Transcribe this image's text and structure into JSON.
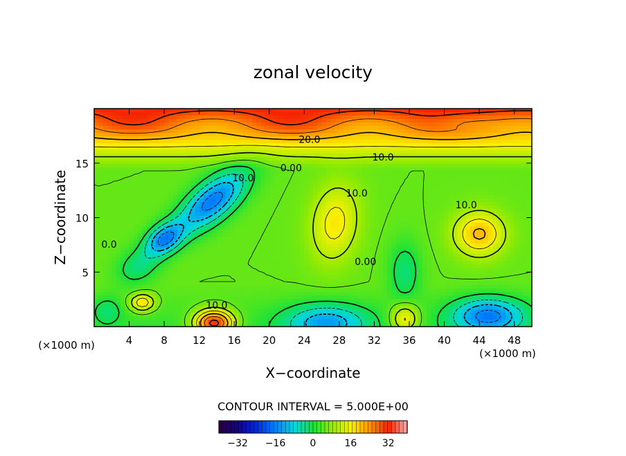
{
  "chart_data": {
    "type": "heatmap",
    "title": "zonal velocity",
    "xlabel": "X−coordinate",
    "ylabel": "Z−coordinate",
    "x_unit": "(×1000 m)",
    "z_unit": "(×1000 m)",
    "xlim": [
      0,
      50
    ],
    "ylim": [
      0,
      20
    ],
    "x_ticks": [
      {
        "value": 4,
        "label": "4"
      },
      {
        "value": 8,
        "label": "8"
      },
      {
        "value": 12,
        "label": "12"
      },
      {
        "value": 16,
        "label": "16"
      },
      {
        "value": 20,
        "label": "20"
      },
      {
        "value": 24,
        "label": "24"
      },
      {
        "value": 28,
        "label": "28"
      },
      {
        "value": 32,
        "label": "32"
      },
      {
        "value": 36,
        "label": "36"
      },
      {
        "value": 40,
        "label": "40"
      },
      {
        "value": 44,
        "label": "44"
      },
      {
        "value": 48,
        "label": "48"
      }
    ],
    "y_ticks": [
      {
        "value": 5,
        "label": "5"
      },
      {
        "value": 10,
        "label": "10"
      },
      {
        "value": 15,
        "label": "15"
      }
    ],
    "contour_interval_text": "CONTOUR INTERVAL = 5.000E+00",
    "contour_labels": [
      {
        "text": "20.0",
        "x": 24.6,
        "z": 17.1
      },
      {
        "text": "10.0",
        "x": 33.0,
        "z": 15.5
      },
      {
        "text": "10.0",
        "x": 17.0,
        "z": 13.6
      },
      {
        "text": "0.00",
        "x": 22.5,
        "z": 14.5
      },
      {
        "text": "10.0",
        "x": 30.0,
        "z": 12.2
      },
      {
        "text": "10.0",
        "x": 42.5,
        "z": 11.1
      },
      {
        "text": "0.00",
        "x": 31.0,
        "z": 5.9
      },
      {
        "text": "10.0",
        "x": 14.0,
        "z": 1.9
      },
      {
        "text": "0.0",
        "x": 1.7,
        "z": 7.5
      }
    ],
    "features": [
      {
        "x": 13.5,
        "z": 11.5,
        "value": -22,
        "sx": 4.5,
        "sz": 1.8,
        "tilt": 0.55
      },
      {
        "x": 8.0,
        "z": 8.0,
        "value": -20,
        "sx": 2.2,
        "sz": 1.3,
        "tilt": 0.4
      },
      {
        "x": 5.0,
        "z": 5.5,
        "value": -8,
        "sx": 2.5,
        "sz": 1.6,
        "tilt": 0.3
      },
      {
        "x": 27.5,
        "z": 9.5,
        "value": 12,
        "sx": 2.6,
        "sz": 3.5,
        "tilt": -0.25
      },
      {
        "x": 35.5,
        "z": 5.0,
        "value": -8,
        "sx": 1.8,
        "sz": 2.8,
        "tilt": 0.0
      },
      {
        "x": 44.0,
        "z": 8.5,
        "value": 16,
        "sx": 2.8,
        "sz": 2.0,
        "tilt": 0.0
      },
      {
        "x": 13.7,
        "z": 0.3,
        "value": 30,
        "sx": 2.2,
        "sz": 1.2,
        "tilt": 0.0
      },
      {
        "x": 26.5,
        "z": 0.4,
        "value": -16,
        "sx": 4.5,
        "sz": 1.6,
        "tilt": 0.0
      },
      {
        "x": 45.0,
        "z": 1.0,
        "value": -20,
        "sx": 4.0,
        "sz": 1.6,
        "tilt": 0.0
      },
      {
        "x": 35.5,
        "z": 0.7,
        "value": 14,
        "sx": 1.6,
        "sz": 1.4,
        "tilt": 0.0
      },
      {
        "x": 5.5,
        "z": 2.2,
        "value": 15,
        "sx": 1.4,
        "sz": 0.8,
        "tilt": 0.0
      },
      {
        "x": 1.5,
        "z": 1.5,
        "value": -6,
        "sx": 1.6,
        "sz": 1.2,
        "tilt": 0.0
      }
    ],
    "colorbar": {
      "min": -40,
      "max": 40,
      "ticks": [
        {
          "value": -32,
          "label": "−32"
        },
        {
          "value": -16,
          "label": "−16"
        },
        {
          "value": 0,
          "label": "0"
        },
        {
          "value": 16,
          "label": "16"
        },
        {
          "value": 32,
          "label": "32"
        }
      ]
    }
  }
}
